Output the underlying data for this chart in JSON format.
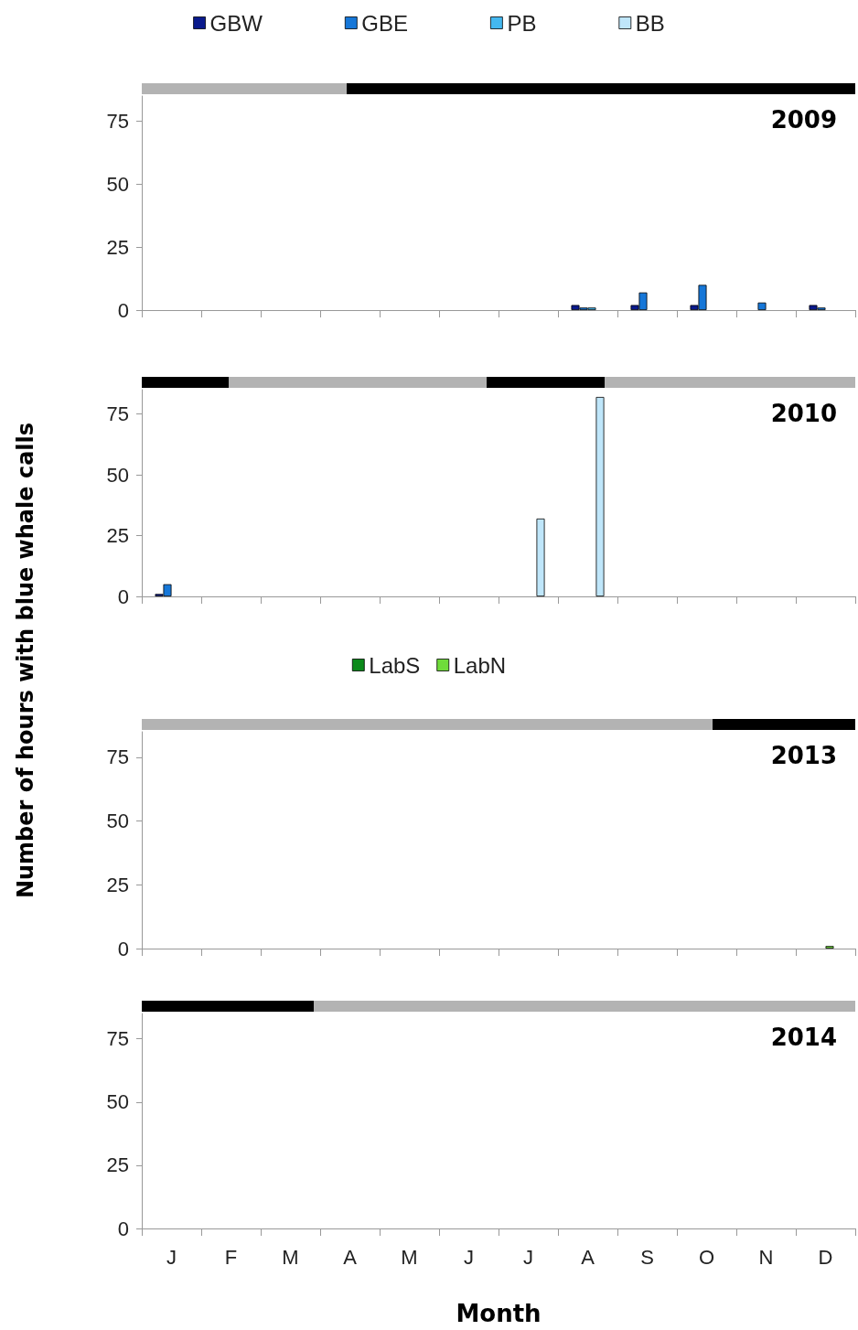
{
  "chart_data": [
    {
      "type": "bar",
      "title": "2009",
      "ylabel": "Number of hours with blue whale calls",
      "legend": "top",
      "categories": [
        null,
        null,
        null,
        null,
        null,
        null,
        null,
        null,
        null,
        null,
        null,
        null
      ],
      "series": [
        {
          "name": "GBW",
          "color": "#0a1a8c",
          "values": [
            0,
            0,
            0,
            0,
            0,
            0,
            0,
            2,
            2,
            2,
            0,
            2
          ]
        },
        {
          "name": "GBE",
          "color": "#1677d8",
          "values": [
            0,
            0,
            0,
            0,
            0,
            0,
            0,
            1,
            7,
            10,
            3,
            1
          ]
        },
        {
          "name": "PB",
          "color": "#44b8f0",
          "values": [
            0,
            0,
            0,
            0,
            0,
            0,
            0,
            1,
            0,
            0,
            0,
            0
          ]
        },
        {
          "name": "BB",
          "color": "#bfe6fa",
          "values": [
            0,
            0,
            0,
            0,
            0,
            0,
            0,
            0,
            0,
            0,
            0,
            0
          ]
        }
      ],
      "ylim": [
        0,
        85
      ],
      "yticks": [
        0,
        25,
        50,
        75
      ],
      "tick_labels": "y",
      "grid": false
    },
    {
      "type": "bar",
      "title": "2010",
      "legend": false,
      "categories": [
        null,
        null,
        null,
        null,
        null,
        null,
        null,
        null,
        null,
        null,
        null,
        null
      ],
      "series": [
        {
          "color": "#0a1a8c",
          "values": [
            1,
            0,
            0,
            0,
            0,
            0,
            0,
            0,
            0,
            0,
            0,
            0
          ]
        },
        {
          "color": "#1677d8",
          "values": [
            5,
            0,
            0,
            0,
            0,
            0,
            0,
            0,
            0,
            0,
            0,
            0
          ]
        },
        {
          "color": "#44b8f0",
          "values": [
            0,
            0,
            0,
            0,
            0,
            0,
            0,
            0,
            0,
            0,
            0,
            0
          ]
        },
        {
          "color": "#bfe6fa",
          "values": [
            0,
            0,
            0,
            0,
            0,
            0,
            32,
            82,
            0,
            0,
            0,
            0
          ]
        }
      ],
      "ylim": [
        0,
        85
      ],
      "yticks": [
        0,
        25,
        50,
        75
      ],
      "tick_labels": "y",
      "grid": false
    },
    {
      "type": "bar",
      "title": "2013",
      "legend": "top",
      "categories": [
        null,
        null,
        null,
        null,
        null,
        null,
        null,
        null,
        null,
        null,
        null,
        null
      ],
      "series": [
        {
          "name": "LabS",
          "color": "#0b8a1a",
          "values": [
            0,
            0,
            0,
            0,
            0,
            0,
            0,
            0,
            0,
            0,
            0,
            0
          ]
        },
        {
          "name": "LabN",
          "color": "#6fdc3a",
          "values": [
            0,
            0,
            0,
            0,
            0,
            0,
            0,
            0,
            0,
            0,
            0,
            1
          ]
        }
      ],
      "ylim": [
        0,
        85
      ],
      "yticks": [
        0,
        25,
        50,
        75
      ],
      "tick_labels": "y",
      "grid": false
    },
    {
      "type": "bar",
      "title": "2014",
      "xlabel": "Month",
      "legend": false,
      "categories": [
        "J",
        "F",
        "M",
        "A",
        "M",
        "J",
        "J",
        "A",
        "S",
        "O",
        "N",
        "D"
      ],
      "series": [
        {
          "color": "#0b8a1a",
          "values": [
            0,
            0,
            0,
            0,
            0,
            0,
            0,
            0,
            0,
            0,
            0,
            0
          ]
        },
        {
          "color": "#6fdc3a",
          "values": [
            0,
            0,
            0,
            0,
            0,
            0,
            0,
            0,
            0,
            0,
            0,
            0
          ]
        }
      ],
      "ylim": [
        0,
        85
      ],
      "yticks": [
        0,
        25,
        50,
        75
      ],
      "grid": false
    }
  ]
}
